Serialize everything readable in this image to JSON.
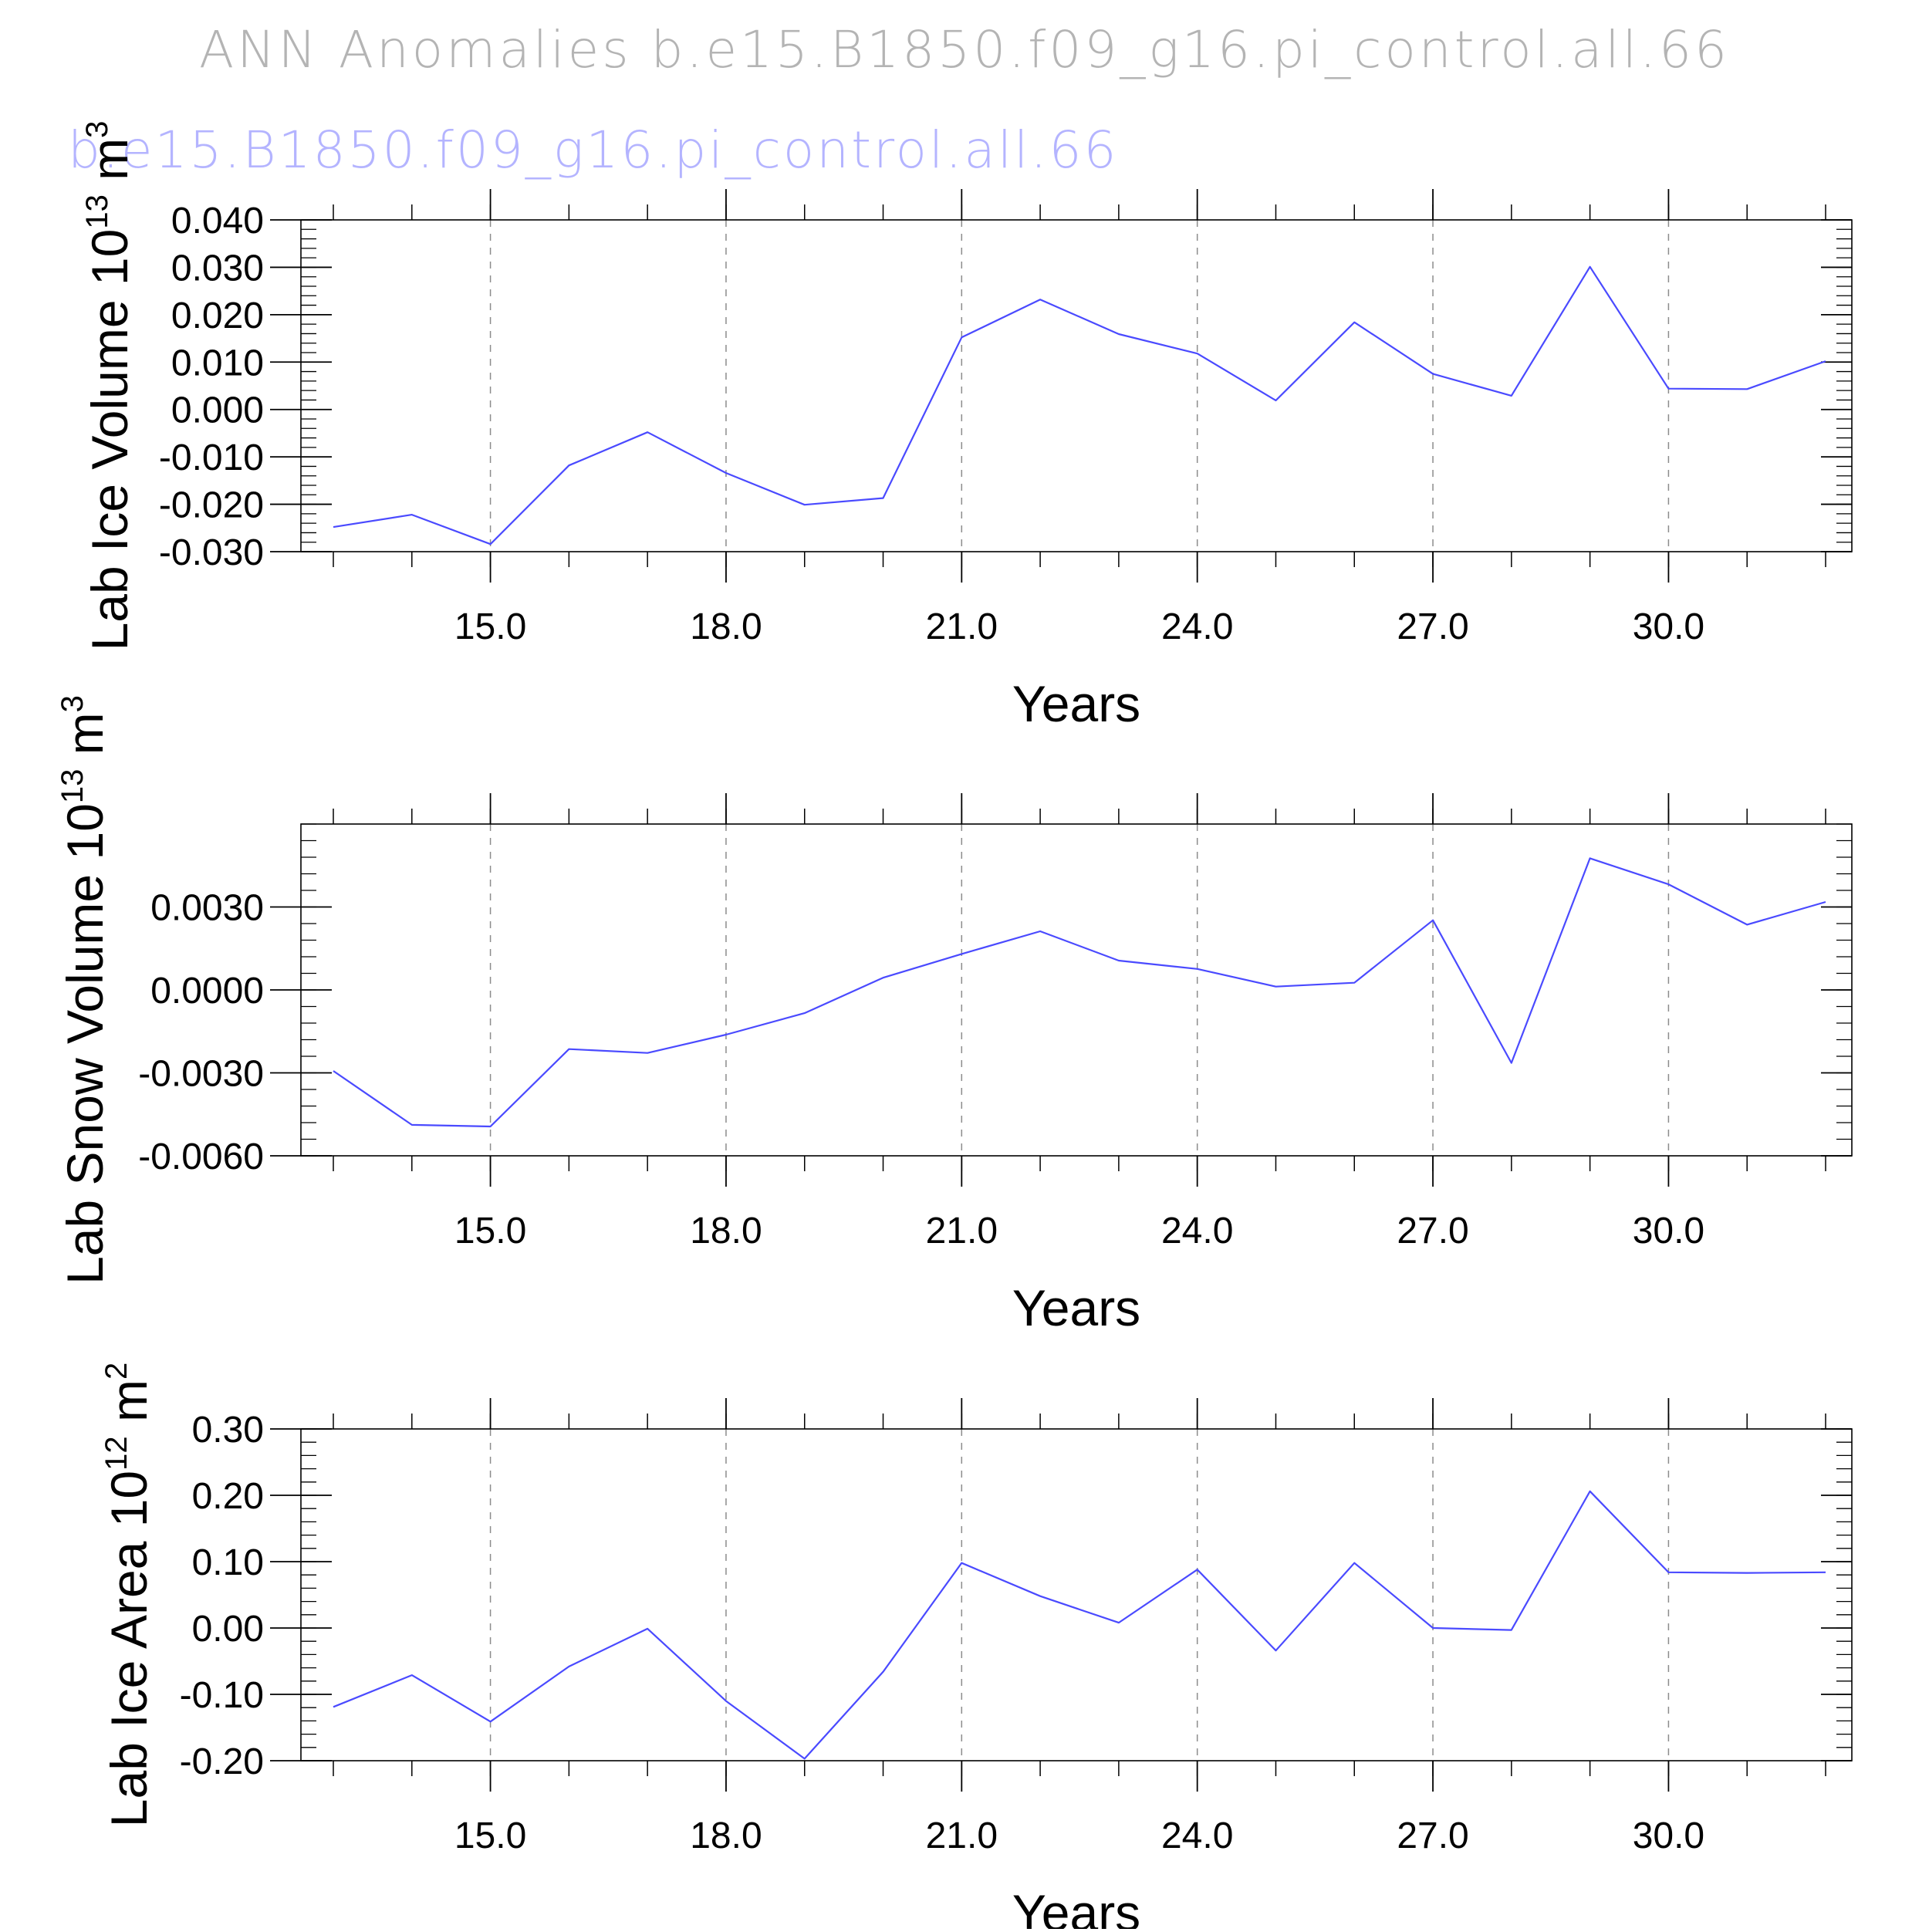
{
  "figure": {
    "title": "ANN Anomalies b.e15.B1850.f09_g16.pi_control.all.66",
    "subtitle": "b.e15.B1850.f09_g16.pi_control.all.66",
    "title_color": "#b4b4b4",
    "subtitle_color": "#b4b4ff",
    "line_color": "#4a4aff"
  },
  "chart_data": [
    {
      "type": "line",
      "ylabel_main": "Lab Ice Volume 10",
      "ylabel_exp": "13",
      "ylabel_unit": "m",
      "ylabel_unit_exp": "3",
      "xlabel": "Years",
      "xlim": [
        13,
        32
      ],
      "ylim": [
        -0.03,
        0.04
      ],
      "x_ticks": [
        15.0,
        18.0,
        21.0,
        24.0,
        27.0,
        30.0
      ],
      "x_tick_labels": [
        "15.0",
        "18.0",
        "21.0",
        "24.0",
        "27.0",
        "30.0"
      ],
      "y_ticks": [
        -0.03,
        -0.02,
        -0.01,
        0.0,
        0.01,
        0.02,
        0.03,
        0.04
      ],
      "y_tick_labels": [
        "-0.030",
        "-0.020",
        "-0.010",
        "0.000",
        "0.010",
        "0.020",
        "0.030",
        "0.040"
      ],
      "y_minor_step": 0.002,
      "grid": "vertical dashed at major x ticks",
      "x": [
        13,
        14,
        15,
        16,
        17,
        18,
        19,
        20,
        21,
        22,
        23,
        24,
        25,
        26,
        27,
        28,
        29,
        30,
        31,
        32
      ],
      "values": [
        -0.0248,
        -0.0222,
        -0.0284,
        -0.0118,
        -0.0048,
        -0.0134,
        -0.0201,
        -0.0187,
        0.0152,
        0.0232,
        0.0159,
        0.0118,
        0.0019,
        0.0184,
        0.0075,
        0.0029,
        0.0301,
        0.0044,
        0.0043,
        0.0102
      ]
    },
    {
      "type": "line",
      "ylabel_main": "Lab Snow Volume 10",
      "ylabel_exp": "13",
      "ylabel_unit": "m",
      "ylabel_unit_exp": "3",
      "xlabel": "Years",
      "xlim": [
        13,
        32
      ],
      "ylim": [
        -0.006,
        0.006
      ],
      "x_ticks": [
        15.0,
        18.0,
        21.0,
        24.0,
        27.0,
        30.0
      ],
      "x_tick_labels": [
        "15.0",
        "18.0",
        "21.0",
        "24.0",
        "27.0",
        "30.0"
      ],
      "y_ticks": [
        -0.006,
        -0.003,
        0.0,
        0.003
      ],
      "y_tick_labels": [
        "-0.0060",
        "-0.0030",
        "0.0000",
        "0.0030"
      ],
      "y_minor_step": 0.0006,
      "grid": "vertical dashed at major x ticks",
      "x": [
        13,
        14,
        15,
        16,
        17,
        18,
        19,
        20,
        21,
        22,
        23,
        24,
        25,
        26,
        27,
        28,
        29,
        30,
        31,
        32
      ],
      "values": [
        -0.00293,
        -0.00488,
        -0.00494,
        -0.00214,
        -0.00228,
        -0.00162,
        -0.00084,
        0.00044,
        0.0013,
        0.00212,
        0.00106,
        0.00076,
        0.00012,
        0.00026,
        0.00252,
        -0.00264,
        0.00476,
        0.00382,
        0.00236,
        0.00318
      ]
    },
    {
      "type": "line",
      "ylabel_main": "Lab Ice Area 10",
      "ylabel_exp": "12",
      "ylabel_unit": "m",
      "ylabel_unit_exp": "2",
      "xlabel": "Years",
      "xlim": [
        13,
        32
      ],
      "ylim": [
        -0.2,
        0.3
      ],
      "x_ticks": [
        15.0,
        18.0,
        21.0,
        24.0,
        27.0,
        30.0
      ],
      "x_tick_labels": [
        "15.0",
        "18.0",
        "21.0",
        "24.0",
        "27.0",
        "30.0"
      ],
      "y_ticks": [
        -0.2,
        -0.1,
        0.0,
        0.1,
        0.2,
        0.3
      ],
      "y_tick_labels": [
        "-0.20",
        "-0.10",
        "0.00",
        "0.10",
        "0.20",
        "0.30"
      ],
      "y_minor_step": 0.02,
      "grid": "vertical dashed at major x ticks",
      "x": [
        13,
        14,
        15,
        16,
        17,
        18,
        19,
        20,
        21,
        22,
        23,
        24,
        25,
        26,
        27,
        28,
        29,
        30,
        31,
        32
      ],
      "values": [
        -0.119,
        -0.071,
        -0.141,
        -0.058,
        -0.001,
        -0.11,
        -0.197,
        -0.066,
        0.098,
        0.048,
        0.008,
        0.088,
        -0.034,
        0.098,
        0.0,
        -0.003,
        0.206,
        0.084,
        0.083,
        0.084
      ]
    }
  ]
}
